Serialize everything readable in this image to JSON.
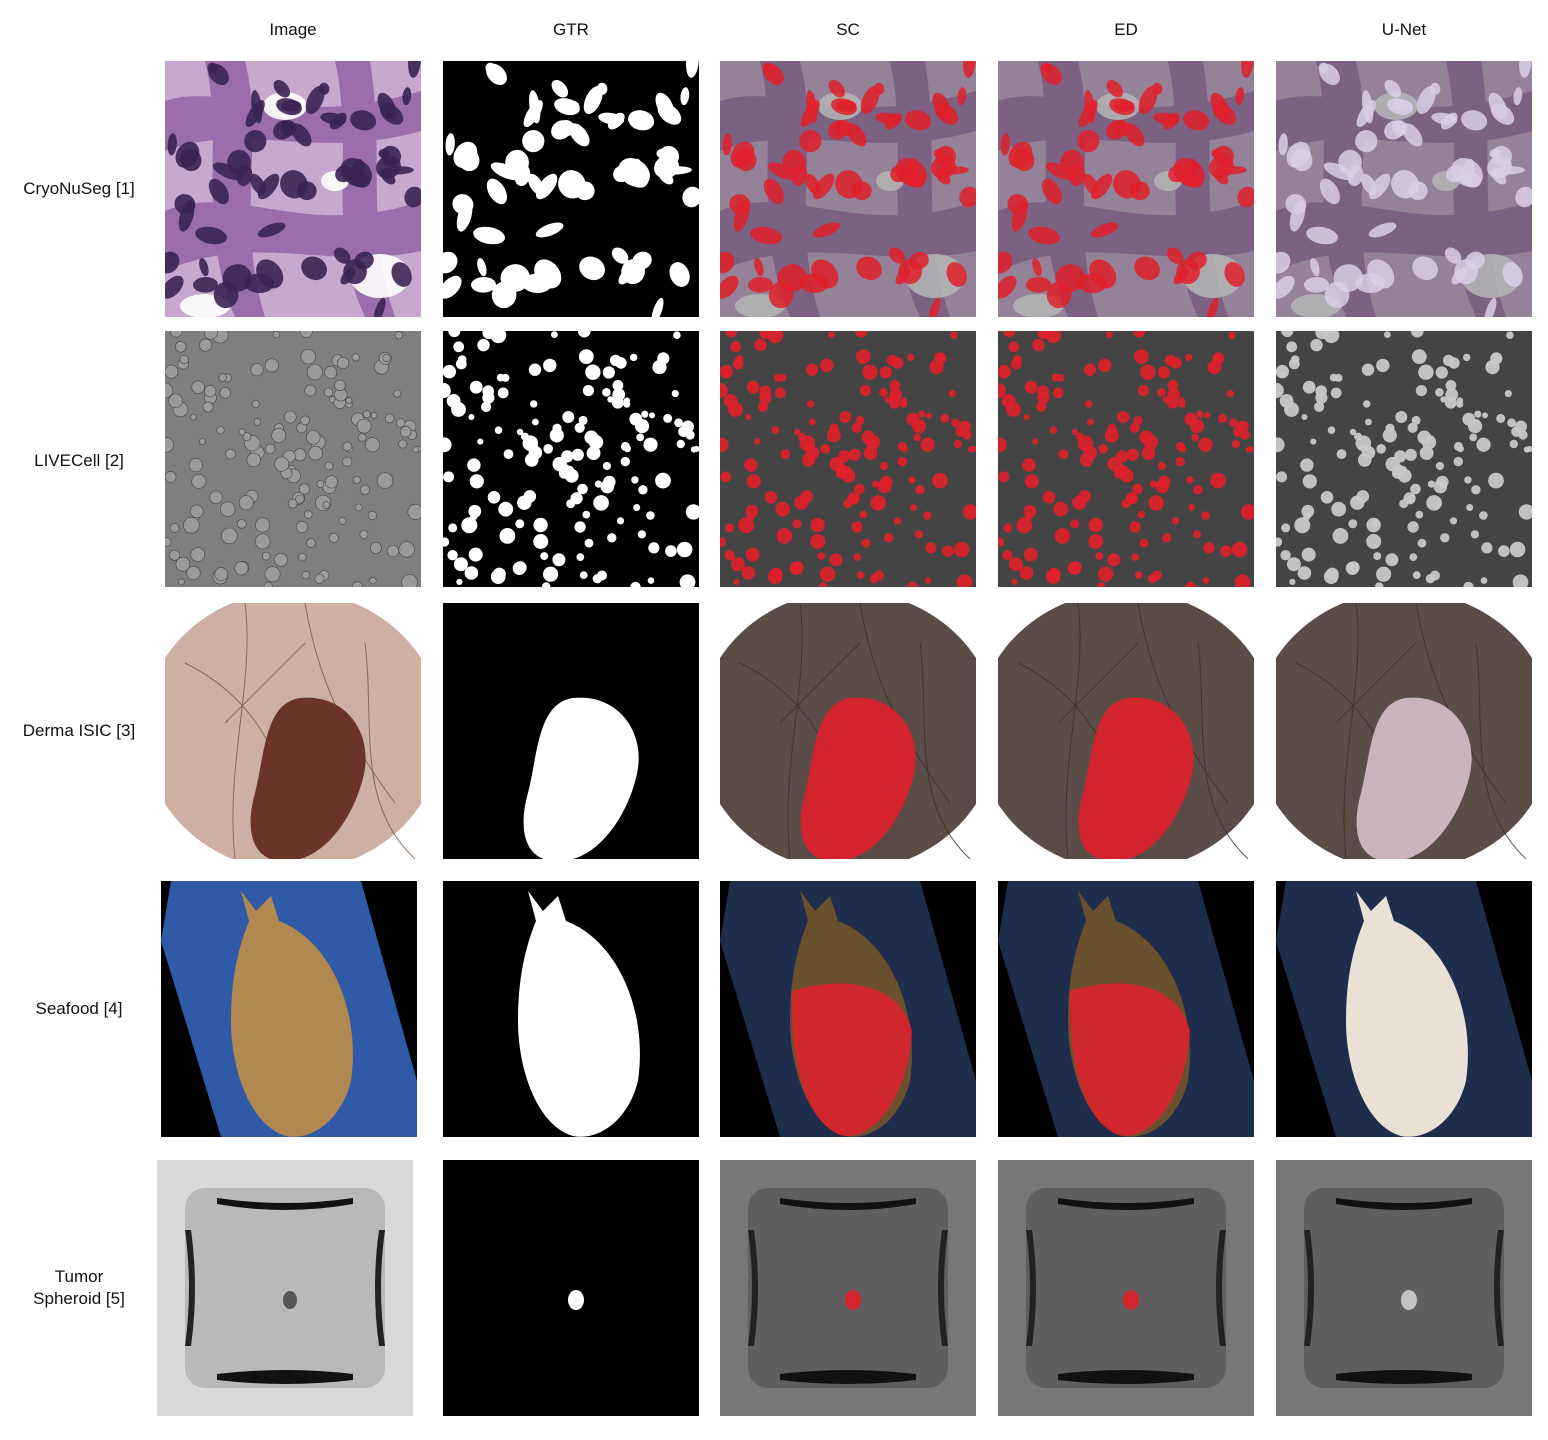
{
  "columns": [
    "Image",
    "GTR",
    "SC",
    "ED",
    "U-Net"
  ],
  "rows": [
    {
      "line1": "CryoNuSeg [1]",
      "line2": ""
    },
    {
      "line1": "LIVECell [2]",
      "line2": ""
    },
    {
      "line1": "Derma ISIC [3]",
      "line2": ""
    },
    {
      "line1": "Seafood [4]",
      "line2": ""
    },
    {
      "line1": "Tumor",
      "line2": "Spheroid [5]"
    }
  ],
  "colors": {
    "overlay_red": "#e0202a",
    "unet_overlay": "#d9cfe6",
    "mask_white": "#ffffff",
    "mask_black": "#000000"
  }
}
